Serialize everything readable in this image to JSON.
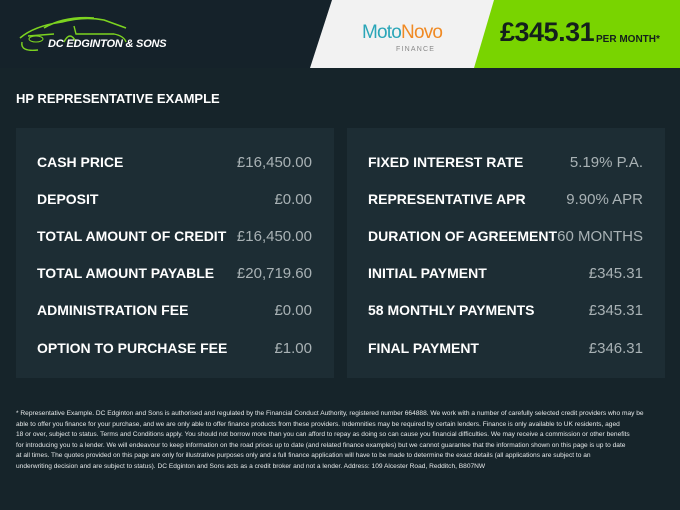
{
  "header": {
    "logo_text": "DC EDGINTON & SONS",
    "lender_name_1": "Moto",
    "lender_name_2": "Novo",
    "lender_sub": "FINANCE",
    "monthly_price": "£345.31",
    "per_month": "PER MONTH*",
    "accent": "#79d400"
  },
  "section_title": "HP REPRESENTATIVE EXAMPLE",
  "left_panel": [
    {
      "label": "CASH PRICE",
      "value": "£16,450.00"
    },
    {
      "label": "DEPOSIT",
      "value": "£0.00"
    },
    {
      "label": "TOTAL AMOUNT OF CREDIT",
      "value": "£16,450.00"
    },
    {
      "label": "TOTAL AMOUNT PAYABLE",
      "value": "£20,719.60"
    },
    {
      "label": "ADMINISTRATION FEE",
      "value": "£0.00"
    },
    {
      "label": "OPTION TO PURCHASE FEE",
      "value": "£1.00"
    }
  ],
  "right_panel": [
    {
      "label": "FIXED INTEREST RATE",
      "value": "5.19% P.A."
    },
    {
      "label": "REPRESENTATIVE APR",
      "value": "9.90% APR"
    },
    {
      "label": "DURATION OF AGREEMENT",
      "value": "60 MONTHS"
    },
    {
      "label": "INITIAL PAYMENT",
      "value": "£345.31"
    },
    {
      "label": "58 MONTHLY PAYMENTS",
      "value": "£345.31"
    },
    {
      "label": "FINAL PAYMENT",
      "value": "£346.31"
    }
  ],
  "disclaimer": [
    "* Representative Example. DC Edginton and Sons is authorised and regulated by the Financial Conduct Authority, registered number 664888. We work with a number of carefully selected credit providers who may be",
    "able to offer you finance for your purchase, and we are only able to offer finance products from these providers. Indemnities may be required by certain lenders. Finance is only available to UK residents, aged",
    "18 or over, subject to status. Terms and Conditions apply. You should not borrow more than you can afford to repay as doing so can cause you financial difficulties. We may receive a commission or other benefits",
    "for introducing you to a lender. We will endeavour to keep information on the road prices up to date (and related finance examples) but we cannot guarantee that the information shown on this page is up to date",
    "at all times. The quotes provided on this page are only for illustrative purposes only and a full finance application will have to be made to determine the exact details (all applications are subject to an",
    "underwriting decision and are subject to status). DC Edginton and Sons acts as a credit broker and not a lender. Address: 109 Alcester Road, Redditch, B807NW"
  ]
}
